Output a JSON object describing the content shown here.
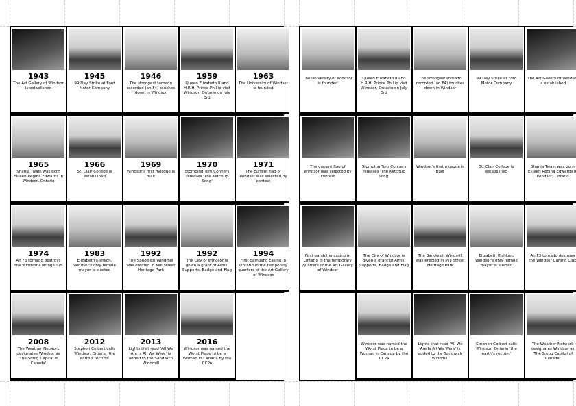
{
  "front": {
    "rows": [
      [
        {
          "year": "1943",
          "text": "The Art Gallery of Windsor is established",
          "img": "dark"
        },
        {
          "year": "1945",
          "text": "99 Day Strike at Ford Motor Company",
          "img": "sky"
        },
        {
          "year": "1946",
          "text": "The strongest tornado recorded (an F4) touches down in Windsor",
          "img": "light"
        },
        {
          "year": "1959",
          "text": "Queen Elizabeth II and H.R.H. Prince Phillip visit Windsor, Ontario on July 3rd",
          "img": "sky"
        },
        {
          "year": "1963",
          "text": "The University of Windsor is founded",
          "img": "light"
        }
      ],
      [
        {
          "year": "1965",
          "text": "Shania Twain was born Eilleen Regina Edwards in Windsor, Ontario",
          "img": "light"
        },
        {
          "year": "1966",
          "text": "St. Clair College is established",
          "img": "sky"
        },
        {
          "year": "1969",
          "text": "Windsor's first mosque is built",
          "img": "light"
        },
        {
          "year": "1970",
          "text": "Stomping Tom Conners releases 'The Ketchup Song'",
          "img": "dark"
        },
        {
          "year": "1971",
          "text": "The current flag of Windsor was selected by contest",
          "img": "dark"
        }
      ],
      [
        {
          "year": "1974",
          "text": "An F3 tornado destroys the Windsor Curling Club",
          "img": "sky"
        },
        {
          "year": "1983",
          "text": "Elizabeth Kishkon, Windsor's only female mayor is elected",
          "img": "light"
        },
        {
          "year": "1992",
          "text": "The Sandwich Windmill was erected in Mill Street Heritage Park",
          "img": "sky"
        },
        {
          "year": "1992",
          "text": "The City of Windsor is given a grant of Arms, Supports, Badge and Flag",
          "img": "light"
        },
        {
          "year": "1994",
          "text": "First gambling casino in Ontario in the temporary quarters of the Art Gallery of Windsor",
          "img": "dark"
        }
      ],
      [
        {
          "year": "2008",
          "text": "The Weather Network designates Windsor as 'The Smog Capital of Canada'",
          "img": "sky"
        },
        {
          "year": "2012",
          "text": "Stephen Colbert calls Windsor, Ontario 'the earth's rectum'",
          "img": "dark"
        },
        {
          "year": "2013",
          "text": "Lights that read 'All We Are Is All We Were' is added to the Sandwich Windmill",
          "img": "dark"
        },
        {
          "year": "2016",
          "text": "Windsor was named the Worst Place to be a Woman in Canada by the CCPA",
          "img": "sky"
        },
        null
      ]
    ]
  },
  "back": {
    "rows": [
      [
        {
          "text": "The University of Windsor is founded",
          "img": "light"
        },
        {
          "text": "Queen Elizabeth II and H.R.H. Prince Phillip visit Windsor, Ontario on July 3rd",
          "img": "sky"
        },
        {
          "text": "The strongest tornado recorded (an F4) touches down in Windsor",
          "img": "light"
        },
        {
          "text": "99 Day Strike at Ford Motor Company",
          "img": "sky"
        },
        {
          "text": "The Art Gallery of Windsor is established",
          "img": "dark"
        }
      ],
      [
        {
          "text": "The current flag of Windsor was selected by contest",
          "img": "dark"
        },
        {
          "text": "Stomping Tom Conners releases 'The Ketchup Song'",
          "img": "dark"
        },
        {
          "text": "Windsor's first mosque is built",
          "img": "light"
        },
        {
          "text": "St. Clair College is established",
          "img": "sky"
        },
        {
          "text": "Shania Twain was born Eilleen Regina Edwards in Windsor, Ontario",
          "img": "light"
        }
      ],
      [
        {
          "text": "First gambling casino in Ontario in the temporary quarters of the Art Gallery of Windsor",
          "img": "dark"
        },
        {
          "text": "The City of Windsor is given a grant of Arms, Supports, Badge and Flag",
          "img": "light"
        },
        {
          "text": "The Sandwich Windmill was erected in Mill Street Heritage Park",
          "img": "sky"
        },
        {
          "text": "Elizabeth Kishkon, Windsor's only female mayor is elected",
          "img": "light"
        },
        {
          "text": "An F3 tornado destroys the Windsor Curling Club",
          "img": "sky"
        }
      ],
      [
        null,
        {
          "text": "Windsor was named the Worst Place to be a Woman in Canada by the CCPA",
          "img": "sky"
        },
        {
          "text": "Lights that read 'All We Are Is All We Were' is added to the Sandwich Windmill",
          "img": "dark"
        },
        {
          "text": "Stephen Colbert calls Windsor, Ontario 'the earth's rectum'",
          "img": "dark"
        },
        {
          "text": "The Weather Network designates Windsor as 'The Smog Capital of Canada'",
          "img": "sky"
        }
      ]
    ]
  }
}
